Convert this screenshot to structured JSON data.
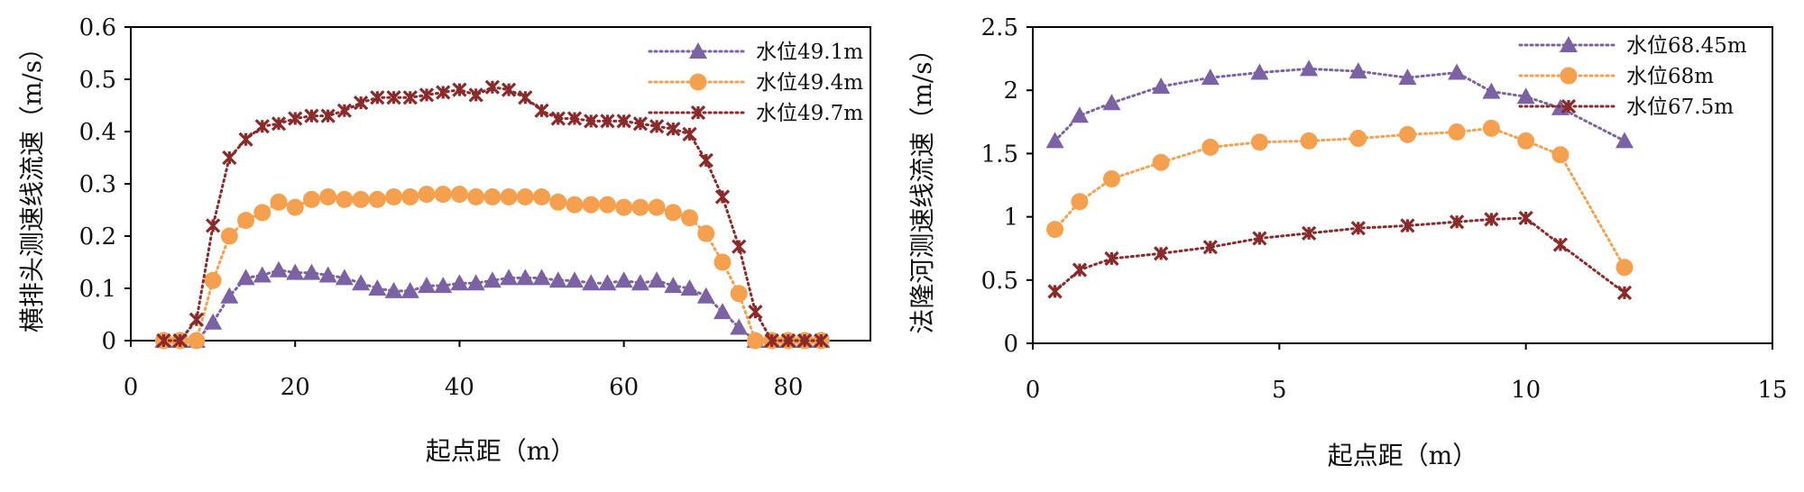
{
  "chart_data": [
    {
      "type": "line",
      "title": "",
      "xlabel": "起点距（m）",
      "ylabel": "横排头测速线流速（m/s）",
      "xlim": [
        0,
        90
      ],
      "ylim": [
        0,
        0.6
      ],
      "x_ticks": [
        "0",
        "20",
        "40",
        "60",
        "80"
      ],
      "y_ticks": [
        "0",
        "0.1",
        "0.2",
        "0.3",
        "0.4",
        "0.5",
        "0.6"
      ],
      "grid": false,
      "legend_position": "top-right",
      "series": [
        {
          "name": "水位49.1m",
          "color": "#7b62a4",
          "marker": "triangle",
          "x": [
            4,
            6,
            8,
            10,
            12,
            14,
            16,
            18,
            20,
            22,
            24,
            26,
            28,
            30,
            32,
            34,
            36,
            38,
            40,
            42,
            44,
            46,
            48,
            50,
            52,
            54,
            56,
            58,
            60,
            62,
            64,
            66,
            68,
            70,
            72,
            74,
            76,
            78,
            80,
            82,
            84
          ],
          "values": [
            0,
            0,
            0,
            0.035,
            0.085,
            0.12,
            0.125,
            0.135,
            0.13,
            0.13,
            0.125,
            0.12,
            0.11,
            0.1,
            0.095,
            0.095,
            0.105,
            0.105,
            0.11,
            0.11,
            0.115,
            0.12,
            0.12,
            0.12,
            0.115,
            0.115,
            0.11,
            0.11,
            0.115,
            0.11,
            0.115,
            0.105,
            0.1,
            0.085,
            0.055,
            0.025,
            0,
            0,
            0,
            0,
            0
          ]
        },
        {
          "name": "水位49.4m",
          "color": "#f4a04e",
          "marker": "circle",
          "x": [
            4,
            6,
            8,
            10,
            12,
            14,
            16,
            18,
            20,
            22,
            24,
            26,
            28,
            30,
            32,
            34,
            36,
            38,
            40,
            42,
            44,
            46,
            48,
            50,
            52,
            54,
            56,
            58,
            60,
            62,
            64,
            66,
            68,
            70,
            72,
            74,
            76,
            78,
            80,
            82,
            84
          ],
          "values": [
            0,
            0,
            0,
            0.115,
            0.2,
            0.23,
            0.245,
            0.265,
            0.255,
            0.27,
            0.275,
            0.27,
            0.27,
            0.27,
            0.275,
            0.275,
            0.28,
            0.28,
            0.28,
            0.275,
            0.275,
            0.275,
            0.275,
            0.275,
            0.265,
            0.26,
            0.26,
            0.26,
            0.255,
            0.255,
            0.255,
            0.245,
            0.235,
            0.205,
            0.15,
            0.09,
            0,
            0,
            0,
            0,
            0
          ]
        },
        {
          "name": "水位49.7m",
          "color": "#8b2a2a",
          "marker": "star",
          "x": [
            4,
            6,
            8,
            10,
            12,
            14,
            16,
            18,
            20,
            22,
            24,
            26,
            28,
            30,
            32,
            34,
            36,
            38,
            40,
            42,
            44,
            46,
            48,
            50,
            52,
            54,
            56,
            58,
            60,
            62,
            64,
            66,
            68,
            70,
            72,
            74,
            76,
            78,
            80,
            82,
            84
          ],
          "values": [
            0,
            0,
            0.04,
            0.22,
            0.35,
            0.385,
            0.41,
            0.415,
            0.425,
            0.43,
            0.43,
            0.44,
            0.455,
            0.465,
            0.465,
            0.465,
            0.47,
            0.475,
            0.48,
            0.47,
            0.485,
            0.48,
            0.465,
            0.44,
            0.425,
            0.425,
            0.42,
            0.42,
            0.42,
            0.415,
            0.41,
            0.405,
            0.395,
            0.345,
            0.275,
            0.18,
            0.055,
            0,
            0,
            0,
            0
          ]
        }
      ]
    },
    {
      "type": "line",
      "title": "",
      "xlabel": "起点距（m）",
      "ylabel": "法隆河测速线流速（m/s）",
      "xlim": [
        0,
        15
      ],
      "ylim": [
        0,
        2.5
      ],
      "x_ticks": [
        "0",
        "5",
        "10",
        "15"
      ],
      "y_ticks": [
        "0",
        "0.5",
        "1",
        "1.5",
        "2",
        "2.5"
      ],
      "grid": false,
      "legend_position": "top-right",
      "series": [
        {
          "name": "水位68.45m",
          "color": "#7b62a4",
          "marker": "triangle",
          "x": [
            0.45,
            0.95,
            1.6,
            2.6,
            3.6,
            4.6,
            5.6,
            6.6,
            7.6,
            8.6,
            9.3,
            10.0,
            10.7,
            12.0
          ],
          "values": [
            1.6,
            1.8,
            1.9,
            2.03,
            2.1,
            2.14,
            2.17,
            2.15,
            2.1,
            2.14,
            1.99,
            1.95,
            1.86,
            1.6
          ]
        },
        {
          "name": "水位68m",
          "color": "#f4a04e",
          "marker": "circle",
          "x": [
            0.45,
            0.95,
            1.6,
            2.6,
            3.6,
            4.6,
            5.6,
            6.6,
            7.6,
            8.6,
            9.3,
            10.0,
            10.7,
            12.0
          ],
          "values": [
            0.9,
            1.12,
            1.3,
            1.43,
            1.55,
            1.59,
            1.6,
            1.62,
            1.65,
            1.67,
            1.7,
            1.6,
            1.49,
            0.6
          ]
        },
        {
          "name": "水位67.5m",
          "color": "#8b2a2a",
          "marker": "star",
          "x": [
            0.45,
            0.95,
            1.6,
            2.6,
            3.6,
            4.6,
            5.6,
            6.6,
            7.6,
            8.6,
            9.3,
            10.0,
            10.7,
            12.0
          ],
          "values": [
            0.41,
            0.58,
            0.67,
            0.71,
            0.76,
            0.83,
            0.87,
            0.91,
            0.93,
            0.96,
            0.98,
            0.99,
            0.78,
            0.4
          ]
        }
      ]
    }
  ]
}
